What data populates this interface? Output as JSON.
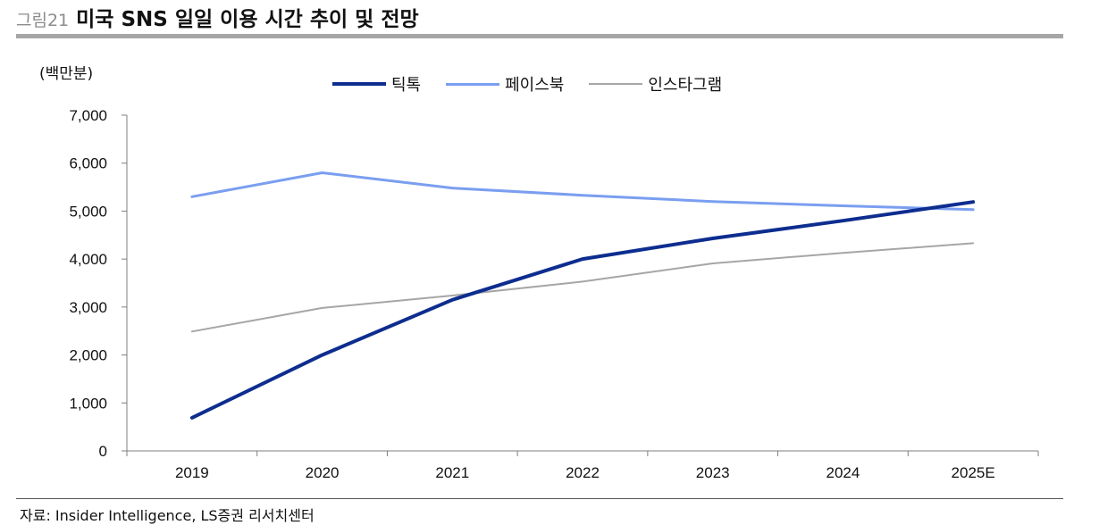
{
  "header": {
    "figure_label": "그림21",
    "title": "미국 SNS 일일 이용 시간 추이 및 전망"
  },
  "source_note": "자료: Insider Intelligence, LS증권 리서치센터",
  "chart_data": {
    "type": "line",
    "unit": "(백만분)",
    "x": [
      "2019",
      "2020",
      "2021",
      "2022",
      "2023",
      "2024",
      "2025E"
    ],
    "ylim": [
      0,
      7000
    ],
    "yticks": [
      "0",
      "1,000",
      "2,000",
      "3,000",
      "4,000",
      "5,000",
      "6,000",
      "7,000"
    ],
    "grid": false,
    "legend_position": "top-center",
    "series": [
      {
        "name": "틱톡",
        "color": "#0d2d8f",
        "values": [
          690,
          2000,
          3150,
          4000,
          4430,
          4800,
          5190
        ]
      },
      {
        "name": "페이스북",
        "color": "#7a9ef0",
        "values": [
          5300,
          5800,
          5480,
          5330,
          5200,
          5110,
          5030
        ]
      },
      {
        "name": "인스타그램",
        "color": "#a6a6a6",
        "values": [
          2490,
          2980,
          3240,
          3530,
          3910,
          4130,
          4330
        ]
      }
    ]
  }
}
